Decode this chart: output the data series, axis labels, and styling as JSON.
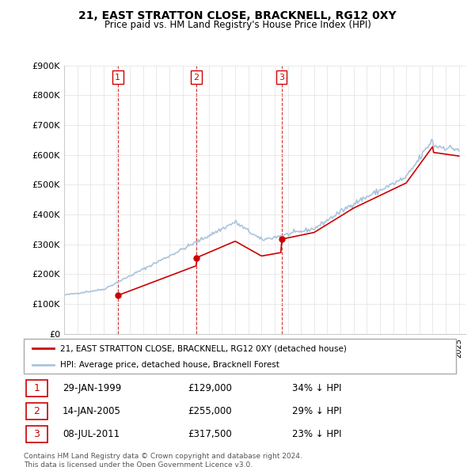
{
  "title": "21, EAST STRATTON CLOSE, BRACKNELL, RG12 0XY",
  "subtitle": "Price paid vs. HM Land Registry's House Price Index (HPI)",
  "ylim": [
    0,
    900000
  ],
  "yticks": [
    0,
    100000,
    200000,
    300000,
    400000,
    500000,
    600000,
    700000,
    800000,
    900000
  ],
  "ytick_labels": [
    "£0",
    "£100K",
    "£200K",
    "£300K",
    "£400K",
    "£500K",
    "£600K",
    "£700K",
    "£800K",
    "£900K"
  ],
  "xlim_start": 1995.0,
  "xlim_end": 2025.5,
  "sale_dates": [
    1999.08,
    2005.04,
    2011.52
  ],
  "sale_prices": [
    129000,
    255000,
    317500
  ],
  "sale_labels": [
    "1",
    "2",
    "3"
  ],
  "hpi_line_color": "#aac4dd",
  "sale_line_color": "#cc0000",
  "sale_marker_color": "#cc0000",
  "vline_color": "#cc0000",
  "grid_color": "#e0e0e0",
  "legend_entries": [
    "21, EAST STRATTON CLOSE, BRACKNELL, RG12 0XY (detached house)",
    "HPI: Average price, detached house, Bracknell Forest"
  ],
  "table_rows": [
    [
      "1",
      "29-JAN-1999",
      "£129,000",
      "34% ↓ HPI"
    ],
    [
      "2",
      "14-JAN-2005",
      "£255,000",
      "29% ↓ HPI"
    ],
    [
      "3",
      "08-JUL-2011",
      "£317,500",
      "23% ↓ HPI"
    ]
  ],
  "footer_text": "Contains HM Land Registry data © Crown copyright and database right 2024.\nThis data is licensed under the Open Government Licence v3.0.",
  "background_color": "#ffffff"
}
